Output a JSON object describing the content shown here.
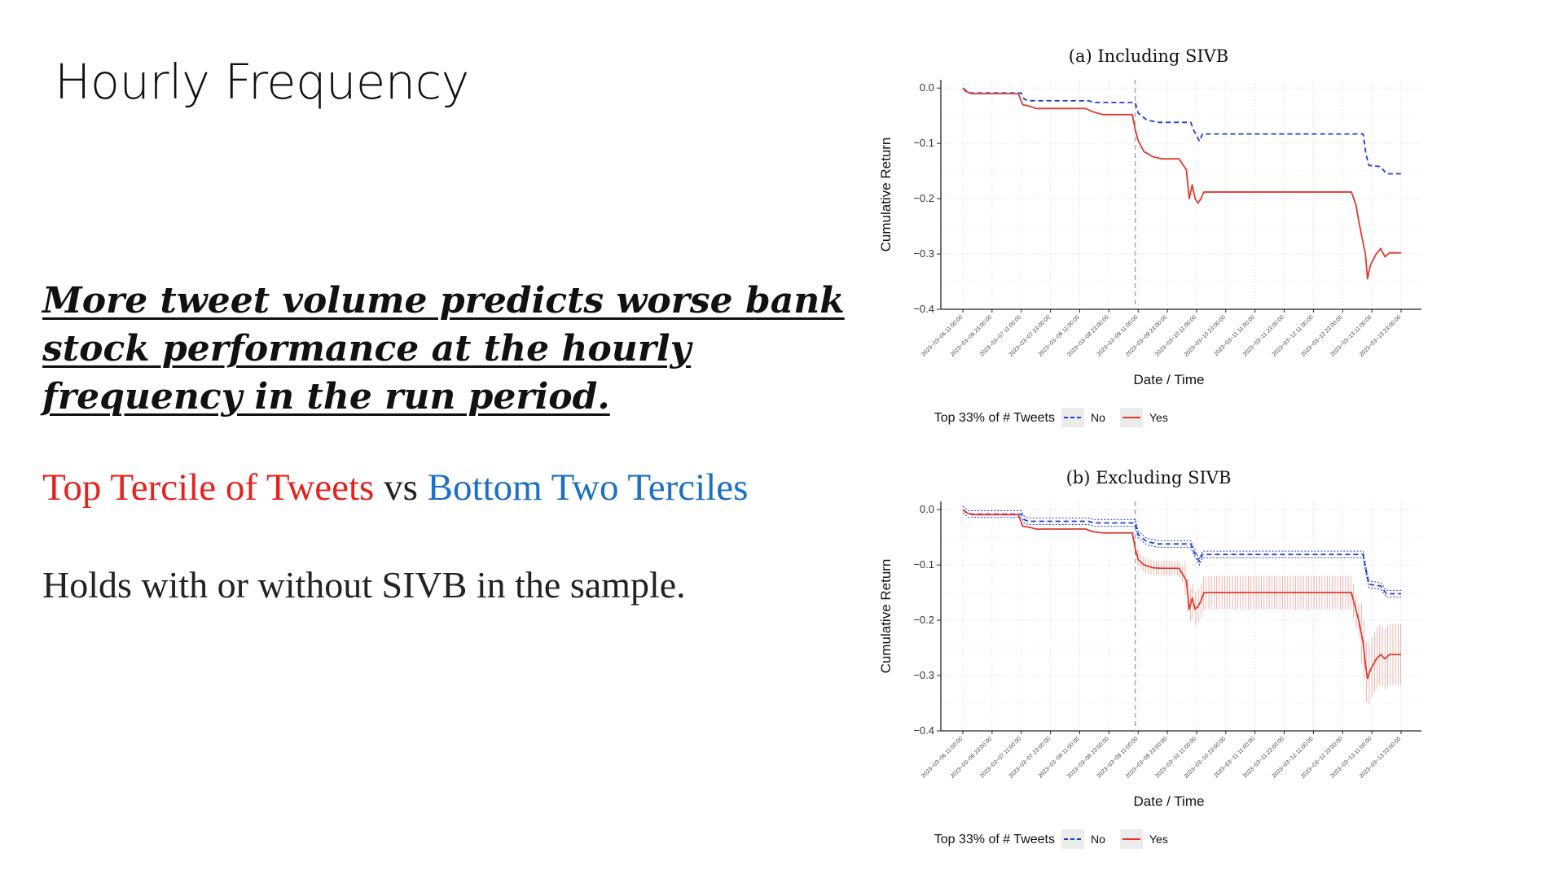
{
  "slide": {
    "title": "Hourly Frequency",
    "headline": "More tweet volume predicts worse bank stock performance at the hourly frequency in the run period.",
    "tercile_red": "Top Tercile of Tweets",
    "tercile_mid": " vs ",
    "tercile_blue": "Bottom Two Terciles",
    "holds": "Holds with or without SIVB in the sample."
  },
  "colors": {
    "no": "#1f3de0",
    "yes": "#e03a2e",
    "highlight_red": "#e8211d",
    "highlight_blue": "#1a70c4"
  },
  "chart_data": [
    {
      "type": "line",
      "title": "(a) Including SIVB",
      "xlabel": "Date / Time",
      "ylabel": "Cumulative Return",
      "ylim": [
        -0.4,
        0.0
      ],
      "yticks": [
        "0.0",
        "−0.1",
        "−0.2",
        "−0.3",
        "−0.4"
      ],
      "xticks": [
        "2023−03−06 11:00:00",
        "2023−03−06 23:00:00",
        "2023−03−07 11:00:00",
        "2023−03−07 23:00:00",
        "2023−03−08 11:00:00",
        "2023−03−08 23:00:00",
        "2023−03−09 11:00:00",
        "2023−03−09 23:00:00",
        "2023−03−10 11:00:00",
        "2023−03−10 23:00:00",
        "2023−03−11 11:00:00",
        "2023−03−11 23:00:00",
        "2023−03−12 11:00:00",
        "2023−03−12 23:00:00",
        "2023−03−13 11:00:00",
        "2023−03−13 23:00:00"
      ],
      "vline_x": 5.9,
      "legend_title": "Top 33% of # Tweets",
      "legend": [
        "No",
        "Yes"
      ],
      "legend_position": "bottom",
      "grid": true,
      "series": [
        {
          "name": "No",
          "style": "dashed",
          "x": [
            0,
            0.1,
            0.2,
            2.0,
            2.1,
            2.25,
            4.3,
            4.5,
            5.9,
            6.0,
            6.3,
            6.7,
            7.8,
            7.9,
            8.1,
            8.2,
            13.7,
            13.8,
            13.9,
            14.3,
            14.5,
            15.0
          ],
          "values": [
            0,
            -0.004,
            -0.009,
            -0.009,
            -0.02,
            -0.023,
            -0.023,
            -0.026,
            -0.026,
            -0.045,
            -0.058,
            -0.062,
            -0.062,
            -0.076,
            -0.096,
            -0.083,
            -0.083,
            -0.12,
            -0.14,
            -0.142,
            -0.155,
            -0.155
          ]
        },
        {
          "name": "Yes",
          "style": "solid",
          "x": [
            0,
            0.1,
            0.3,
            1.9,
            2.05,
            2.3,
            2.5,
            4.2,
            4.45,
            4.8,
            5.8,
            5.9,
            6.0,
            6.2,
            6.5,
            6.8,
            7.4,
            7.65,
            7.75,
            7.85,
            7.95,
            8.05,
            8.15,
            8.25,
            13.3,
            13.45,
            13.55,
            13.7,
            13.78,
            13.85,
            13.95,
            14.05,
            14.15,
            14.3,
            14.45,
            14.6,
            15.0
          ],
          "values": [
            0,
            -0.006,
            -0.01,
            -0.01,
            -0.03,
            -0.033,
            -0.037,
            -0.037,
            -0.043,
            -0.048,
            -0.048,
            -0.075,
            -0.095,
            -0.115,
            -0.124,
            -0.128,
            -0.128,
            -0.148,
            -0.2,
            -0.175,
            -0.2,
            -0.208,
            -0.2,
            -0.188,
            -0.188,
            -0.21,
            -0.24,
            -0.28,
            -0.3,
            -0.345,
            -0.32,
            -0.31,
            -0.3,
            -0.29,
            -0.305,
            -0.298,
            -0.298
          ]
        }
      ]
    },
    {
      "type": "line",
      "title": "(b) Excluding SIVB",
      "xlabel": "Date / Time",
      "ylabel": "Cumulative Return",
      "ylim": [
        -0.4,
        0.0
      ],
      "yticks": [
        "0.0",
        "−0.1",
        "−0.2",
        "−0.3",
        "−0.4"
      ],
      "xticks": [
        "2023−03−06 11:00:00",
        "2023−03−06 23:00:00",
        "2023−03−07 11:00:00",
        "2023−03−07 23:00:00",
        "2023−03−08 11:00:00",
        "2023−03−08 23:00:00",
        "2023−03−09 11:00:00",
        "2023−03−09 23:00:00",
        "2023−03−10 11:00:00",
        "2023−03−10 23:00:00",
        "2023−03−11 11:00:00",
        "2023−03−11 23:00:00",
        "2023−03−12 11:00:00",
        "2023−03−12 23:00:00",
        "2023−03−13 11:00:00",
        "2023−03−13 23:00:00"
      ],
      "vline_x": 5.9,
      "legend_title": "Top 33% of # Tweets",
      "legend": [
        "No",
        "Yes"
      ],
      "legend_position": "bottom",
      "grid": true,
      "series": [
        {
          "name": "No",
          "style": "dashed",
          "x": [
            0,
            0.1,
            0.2,
            2.0,
            2.1,
            2.25,
            4.3,
            4.5,
            5.9,
            6.0,
            6.3,
            6.7,
            7.8,
            7.9,
            8.1,
            8.2,
            13.7,
            13.8,
            13.9,
            14.3,
            14.5,
            15.0
          ],
          "values": [
            0,
            -0.004,
            -0.008,
            -0.008,
            -0.018,
            -0.021,
            -0.021,
            -0.024,
            -0.024,
            -0.045,
            -0.058,
            -0.062,
            -0.062,
            -0.075,
            -0.094,
            -0.081,
            -0.081,
            -0.11,
            -0.135,
            -0.138,
            -0.152,
            -0.152
          ],
          "band": 0.006
        },
        {
          "name": "Yes",
          "style": "solid",
          "x": [
            0,
            0.1,
            0.3,
            1.9,
            2.05,
            2.3,
            2.5,
            4.2,
            4.45,
            4.8,
            5.8,
            5.9,
            6.0,
            6.2,
            6.5,
            6.8,
            7.4,
            7.65,
            7.75,
            7.85,
            7.95,
            8.05,
            8.15,
            8.25,
            13.3,
            13.45,
            13.55,
            13.7,
            13.78,
            13.85,
            13.95,
            14.05,
            14.15,
            14.3,
            14.45,
            14.6,
            15.0
          ],
          "values": [
            0,
            -0.005,
            -0.009,
            -0.009,
            -0.03,
            -0.032,
            -0.035,
            -0.035,
            -0.04,
            -0.042,
            -0.042,
            -0.07,
            -0.09,
            -0.1,
            -0.105,
            -0.106,
            -0.106,
            -0.128,
            -0.18,
            -0.16,
            -0.18,
            -0.175,
            -0.165,
            -0.15,
            -0.15,
            -0.18,
            -0.2,
            -0.24,
            -0.28,
            -0.305,
            -0.29,
            -0.28,
            -0.27,
            -0.262,
            -0.27,
            -0.262,
            -0.262
          ],
          "band": 0.055
        }
      ]
    }
  ]
}
